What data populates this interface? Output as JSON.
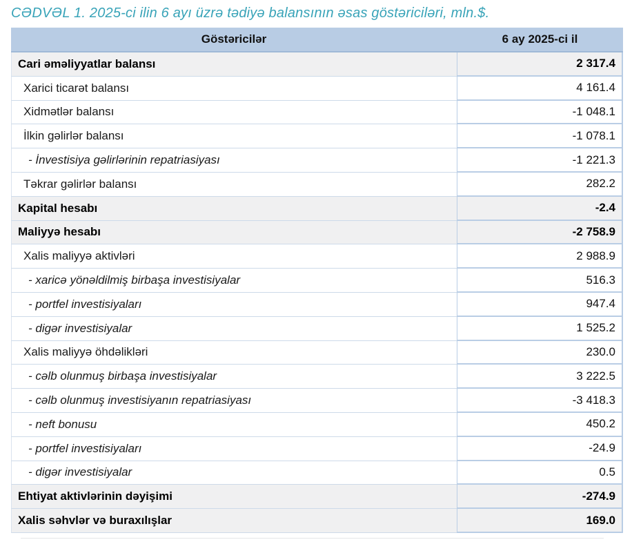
{
  "title": "CƏDVƏL 1. 2025-ci ilin 6 ayı üzrə tədiyə balansının əsas göstəriciləri, mln.$.",
  "table": {
    "columns": [
      {
        "label": "Göstəricilər"
      },
      {
        "label": "6 ay 2025-ci il"
      }
    ],
    "rows": [
      {
        "label": "Cari əməliyyatlar balansı",
        "value": "2 317.4",
        "style": "section"
      },
      {
        "label": "Xarici ticarət balansı",
        "value": "4 161.4",
        "style": "sub"
      },
      {
        "label": "Xidmətlər balansı",
        "value": "-1 048.1",
        "style": "sub"
      },
      {
        "label": "İlkin gəlirlər balansı",
        "value": "-1 078.1",
        "style": "sub"
      },
      {
        "label": "- İnvestisiya gəlirlərinin repatriasiyası",
        "value": "-1 221.3",
        "style": "detail"
      },
      {
        "label": "Təkrar gəlirlər balansı",
        "value": "282.2",
        "style": "sub"
      },
      {
        "label": "Kapital hesabı",
        "value": "-2.4",
        "style": "section"
      },
      {
        "label": "Maliyyə hesabı",
        "value": "-2 758.9",
        "style": "section"
      },
      {
        "label": "Xalis maliyyə aktivləri",
        "value": "2 988.9",
        "style": "sub"
      },
      {
        "label": "- xaricə yönəldilmiş birbaşa investisiyalar",
        "value": "516.3",
        "style": "detail"
      },
      {
        "label": "- portfel investisiyaları",
        "value": "947.4",
        "style": "detail"
      },
      {
        "label": "- digər investisiyalar",
        "value": "1 525.2",
        "style": "detail"
      },
      {
        "label": "Xalis maliyyə öhdəlikləri",
        "value": "230.0",
        "style": "sub"
      },
      {
        "label": "- cəlb olunmuş birbaşa investisiyalar",
        "value": "3 222.5",
        "style": "detail"
      },
      {
        "label": "- cəlb olunmuş investisiyanın repatriasiyası",
        "value": "-3 418.3",
        "style": "detail"
      },
      {
        "label": "- neft bonusu",
        "value": "450.2",
        "style": "detail"
      },
      {
        "label": "- portfel investisiyaları",
        "value": "-24.9",
        "style": "detail"
      },
      {
        "label": "- digər investisiyalar",
        "value": "0.5",
        "style": "detail"
      },
      {
        "label": "Ehtiyat aktivlərinin dəyişimi",
        "value": "-274.9",
        "style": "section"
      },
      {
        "label": "Xalis səhvlər və buraxılışlar",
        "value": "169.0",
        "style": "section"
      }
    ]
  },
  "colors": {
    "title_teal": "#38A3B8",
    "header_blue": "#B8CCE4",
    "header_border_blue": "#9FB9D7",
    "section_row_gray": "#F0F0F1",
    "value_border_blue": "#B9CDE5",
    "label_border_gray": "#CDDAE9"
  }
}
